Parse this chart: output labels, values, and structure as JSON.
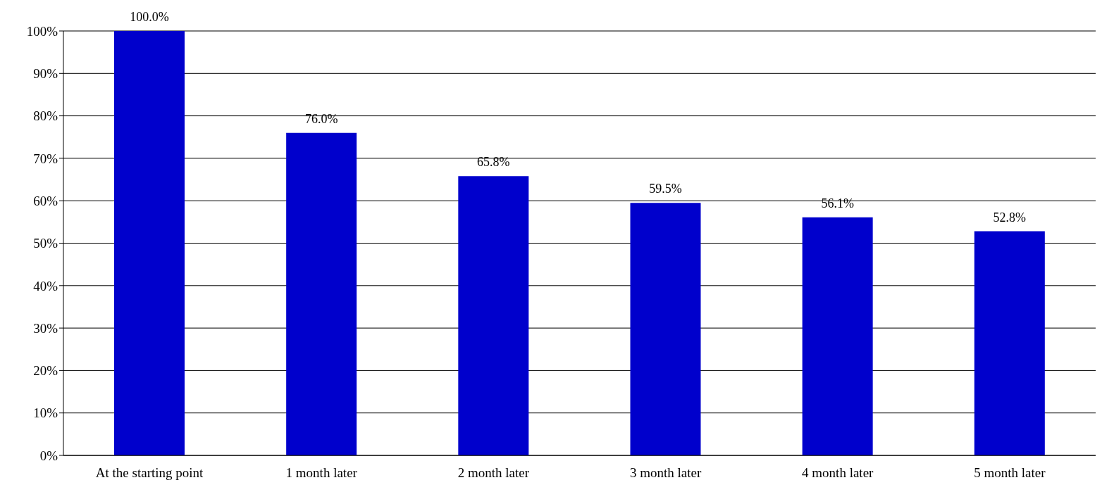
{
  "chart_data": {
    "type": "bar",
    "categories": [
      "At the starting point",
      "1 month later",
      "2 month later",
      "3 month later",
      "4 month later",
      "5 month later"
    ],
    "values": [
      100,
      76.0,
      65.8,
      59.5,
      56.1,
      52.8
    ],
    "value_labels": [
      "100.0%",
      "76.0%",
      "65.8%",
      "59.5%",
      "56.1%",
      "52.8%"
    ],
    "color": "#0000cc",
    "ylim": [
      0,
      100
    ],
    "yticks": [
      {
        "value": 0,
        "label": "0%"
      },
      {
        "value": 10,
        "label": "10%"
      },
      {
        "value": 20,
        "label": "20%"
      },
      {
        "value": 30,
        "label": "30%"
      },
      {
        "value": 40,
        "label": "40%"
      },
      {
        "value": 50,
        "label": "50%"
      },
      {
        "value": 60,
        "label": "60%"
      },
      {
        "value": 70,
        "label": "70%"
      },
      {
        "value": 80,
        "label": "80%"
      },
      {
        "value": 90,
        "label": "90%"
      },
      {
        "value": 100,
        "label": "100%"
      }
    ],
    "grid": "y"
  }
}
